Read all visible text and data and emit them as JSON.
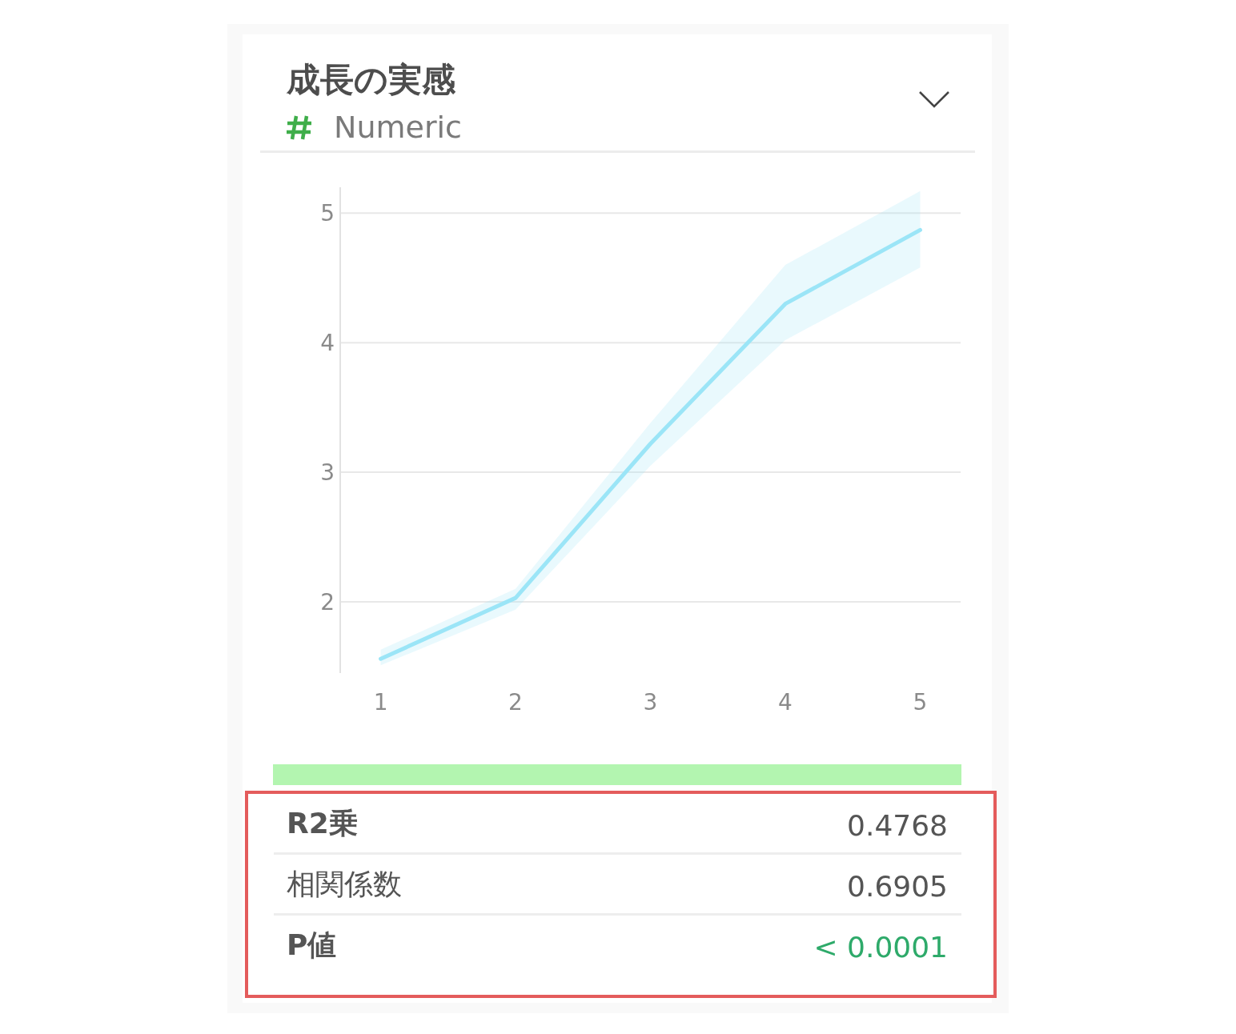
{
  "chart_data": {
    "type": "line",
    "title": "成長の実感",
    "subtitle": "Numeric",
    "x": [
      1,
      2,
      3,
      4,
      5
    ],
    "series": [
      {
        "color": "#9be5f7",
        "values": [
          1.56,
          2.03,
          3.22,
          4.3,
          4.87
        ],
        "lower": [
          1.51,
          1.94,
          3.05,
          4.02,
          4.58
        ],
        "upper": [
          1.63,
          2.1,
          3.38,
          4.6,
          5.17
        ]
      }
    ],
    "xlim": [
      0.7,
      5.3
    ],
    "xticks": [
      1,
      2,
      3,
      4,
      5
    ],
    "ylim": [
      1.45,
      5.2
    ],
    "yticks": [
      2,
      3,
      4,
      5
    ],
    "grid": "y",
    "marker": "none",
    "line_style": "solid",
    "annotations": [
      "R2乗",
      "0.4768",
      "相関係数",
      "0.6905",
      "P値",
      "< 0.0001"
    ]
  }
}
